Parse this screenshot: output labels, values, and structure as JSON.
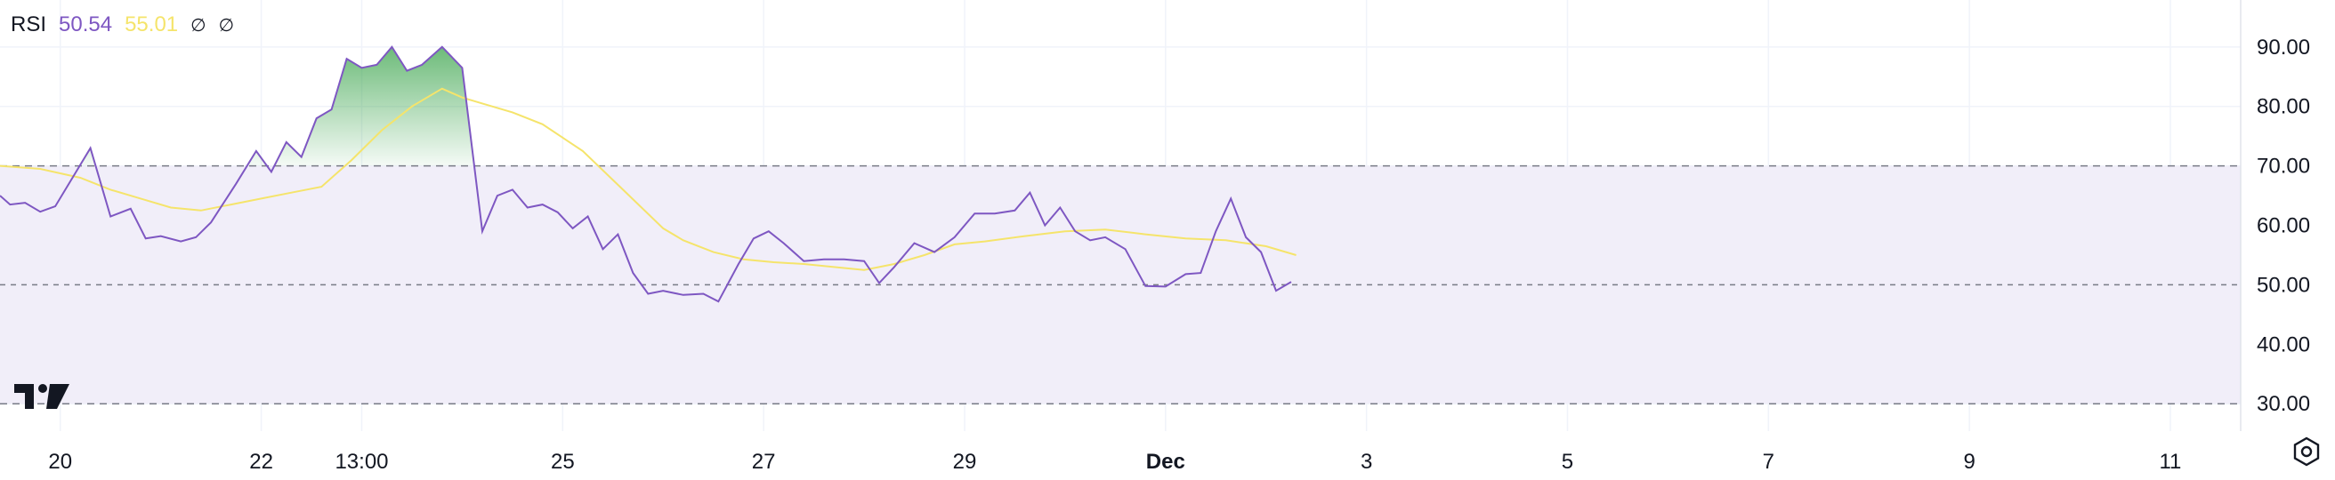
{
  "legend": {
    "indicator": "RSI",
    "rsi_value": "50.54",
    "ma_value": "55.01",
    "icon1": "empty-set-icon",
    "icon2": "empty-set-icon"
  },
  "colors": {
    "rsi_line": "#7e57c2",
    "ma_line": "#f5e46b",
    "band_fill": "#f1eef9",
    "overbought_fill": "#2e9e40",
    "grid": "#f0f3fa",
    "dashed": "#787b86"
  },
  "chart_data": {
    "type": "line",
    "yticks": [
      "90.00",
      "80.00",
      "70.00",
      "60.00",
      "50.00",
      "40.00",
      "30.00"
    ],
    "ylim": [
      25.4,
      97.9
    ],
    "bands": {
      "upper": 70,
      "middle": 50,
      "lower": 30
    },
    "xticks": [
      {
        "label": "20",
        "x": 0.8
      },
      {
        "label": "22",
        "x": 2.8
      },
      {
        "label": "13:00",
        "x": 3.8
      },
      {
        "label": "25",
        "x": 5.8
      },
      {
        "label": "27",
        "x": 7.8
      },
      {
        "label": "29",
        "x": 9.8
      },
      {
        "label": "Dec",
        "x": 11.8
      },
      {
        "label": "3",
        "x": 13.8
      },
      {
        "label": "5",
        "x": 15.8
      },
      {
        "label": "7",
        "x": 17.8
      },
      {
        "label": "9",
        "x": 19.8
      },
      {
        "label": "11",
        "x": 21.8
      }
    ],
    "xlim": [
      0.2,
      22.5
    ],
    "series": [
      {
        "key": "rsi",
        "x": [
          0.2,
          0.3,
          0.45,
          0.6,
          0.75,
          1.1,
          1.3,
          1.5,
          1.65,
          1.8,
          2.0,
          2.15,
          2.3,
          2.55,
          2.75,
          2.9,
          3.05,
          3.2,
          3.35,
          3.5,
          3.65,
          3.8,
          3.95,
          4.1,
          4.25,
          4.4,
          4.6,
          4.8,
          5.0,
          5.15,
          5.3,
          5.45,
          5.6,
          5.75,
          5.9,
          6.05,
          6.2,
          6.35,
          6.5,
          6.65,
          6.8,
          7.0,
          7.2,
          7.35,
          7.55,
          7.7,
          7.85,
          8.0,
          8.2,
          8.4,
          8.6,
          8.8,
          8.95,
          9.1,
          9.3,
          9.5,
          9.7,
          9.9,
          10.1,
          10.3,
          10.45,
          10.6,
          10.75,
          10.9,
          11.05,
          11.2,
          11.4,
          11.6,
          11.8,
          12.0,
          12.15,
          12.3,
          12.45,
          12.6,
          12.75,
          12.9,
          13.05
        ],
        "y": [
          65,
          63.5,
          63.8,
          62.3,
          63.2,
          73,
          61.5,
          62.8,
          57.8,
          58.2,
          57.3,
          58,
          60.5,
          67,
          72.5,
          69,
          74,
          71.5,
          78,
          79.5,
          88,
          86.5,
          87,
          90,
          86,
          87,
          90,
          86.5,
          59,
          65,
          66,
          63,
          63.5,
          62.2,
          59.5,
          61.5,
          56,
          58.5,
          52,
          48.5,
          49,
          48.3,
          48.5,
          47.2,
          53.5,
          57.8,
          59,
          57,
          54,
          54.3,
          54.3,
          54,
          50.3,
          53,
          57,
          55.5,
          58,
          62,
          62,
          62.5,
          65.5,
          60,
          63,
          59,
          57.5,
          58,
          56,
          49.8,
          49.7,
          51.8,
          52,
          59,
          64.5,
          58,
          55.5,
          49,
          50.5
        ]
      },
      {
        "key": "ma",
        "x": [
          0.2,
          0.6,
          1.0,
          1.3,
          1.6,
          1.9,
          2.2,
          2.5,
          2.8,
          3.1,
          3.4,
          3.7,
          4.0,
          4.3,
          4.6,
          4.8,
          5.0,
          5.3,
          5.6,
          6.0,
          6.4,
          6.8,
          7.0,
          7.3,
          7.6,
          7.9,
          8.2,
          8.5,
          8.8,
          9.1,
          9.4,
          9.7,
          10.0,
          10.4,
          10.8,
          11.2,
          11.6,
          12.0,
          12.4,
          12.8,
          13.1
        ],
        "y": [
          70,
          69.5,
          68,
          66,
          64.5,
          63,
          62.5,
          63.5,
          64.5,
          65.5,
          66.5,
          71,
          76,
          80,
          83,
          81.5,
          80.5,
          79,
          77,
          72.5,
          66,
          59.5,
          57.5,
          55.5,
          54.3,
          53.8,
          53.5,
          53,
          52.5,
          53.5,
          55,
          56.8,
          57.3,
          58.2,
          59,
          59.3,
          58.5,
          57.8,
          57.5,
          56.5,
          55
        ]
      }
    ]
  }
}
